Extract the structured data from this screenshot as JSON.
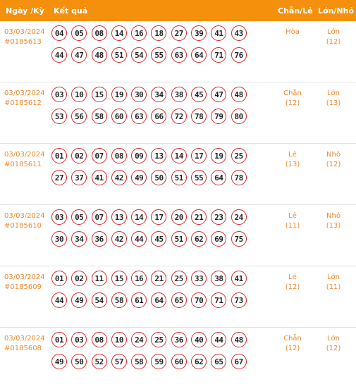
{
  "header": {
    "date_label": "Ngày /Kỳ",
    "result_label": "Kết quả",
    "odd_even_label": "Chẵn/Lẻ",
    "big_small_label": "Lớn/Nhỏ"
  },
  "rows": [
    {
      "date": "03/03/2024",
      "draw": "#0185613",
      "numbers": [
        "04",
        "05",
        "08",
        "14",
        "16",
        "18",
        "27",
        "39",
        "41",
        "43",
        "44",
        "47",
        "48",
        "51",
        "54",
        "55",
        "63",
        "64",
        "71",
        "76"
      ],
      "odd_even": "Hòa",
      "odd_even_count": "",
      "big_small": "Lớn",
      "big_small_count": "(12)"
    },
    {
      "date": "03/03/2024",
      "draw": "#0185612",
      "numbers": [
        "03",
        "10",
        "15",
        "19",
        "30",
        "34",
        "38",
        "45",
        "47",
        "48",
        "53",
        "56",
        "58",
        "60",
        "63",
        "66",
        "72",
        "78",
        "79",
        "80"
      ],
      "odd_even": "Chẵn",
      "odd_even_count": "(12)",
      "big_small": "Lớn",
      "big_small_count": "(13)"
    },
    {
      "date": "03/03/2024",
      "draw": "#0185611",
      "numbers": [
        "01",
        "02",
        "07",
        "08",
        "09",
        "13",
        "14",
        "17",
        "19",
        "25",
        "27",
        "37",
        "41",
        "42",
        "49",
        "50",
        "51",
        "55",
        "64",
        "78"
      ],
      "odd_even": "Lẻ",
      "odd_even_count": "(13)",
      "big_small": "Nhỏ",
      "big_small_count": "(12)"
    },
    {
      "date": "03/03/2024",
      "draw": "#0185610",
      "numbers": [
        "03",
        "05",
        "07",
        "13",
        "14",
        "17",
        "20",
        "21",
        "23",
        "24",
        "30",
        "34",
        "36",
        "42",
        "44",
        "45",
        "51",
        "62",
        "69",
        "75"
      ],
      "odd_even": "Lẻ",
      "odd_even_count": "(11)",
      "big_small": "Nhỏ",
      "big_small_count": "(13)"
    },
    {
      "date": "03/03/2024",
      "draw": "#0185609",
      "numbers": [
        "01",
        "02",
        "11",
        "15",
        "16",
        "21",
        "25",
        "33",
        "38",
        "41",
        "44",
        "49",
        "54",
        "58",
        "61",
        "64",
        "65",
        "70",
        "71",
        "73"
      ],
      "odd_even": "Lẻ",
      "odd_even_count": "(12)",
      "big_small": "Lớn",
      "big_small_count": "(11)"
    },
    {
      "date": "03/03/2024",
      "draw": "#0185608",
      "numbers": [
        "01",
        "03",
        "08",
        "10",
        "24",
        "25",
        "36",
        "40",
        "44",
        "48",
        "49",
        "50",
        "52",
        "57",
        "58",
        "59",
        "60",
        "62",
        "65",
        "67"
      ],
      "odd_even": "Chẵn",
      "odd_even_count": "(12)",
      "big_small": "Lớn",
      "big_small_count": "(12)"
    }
  ]
}
